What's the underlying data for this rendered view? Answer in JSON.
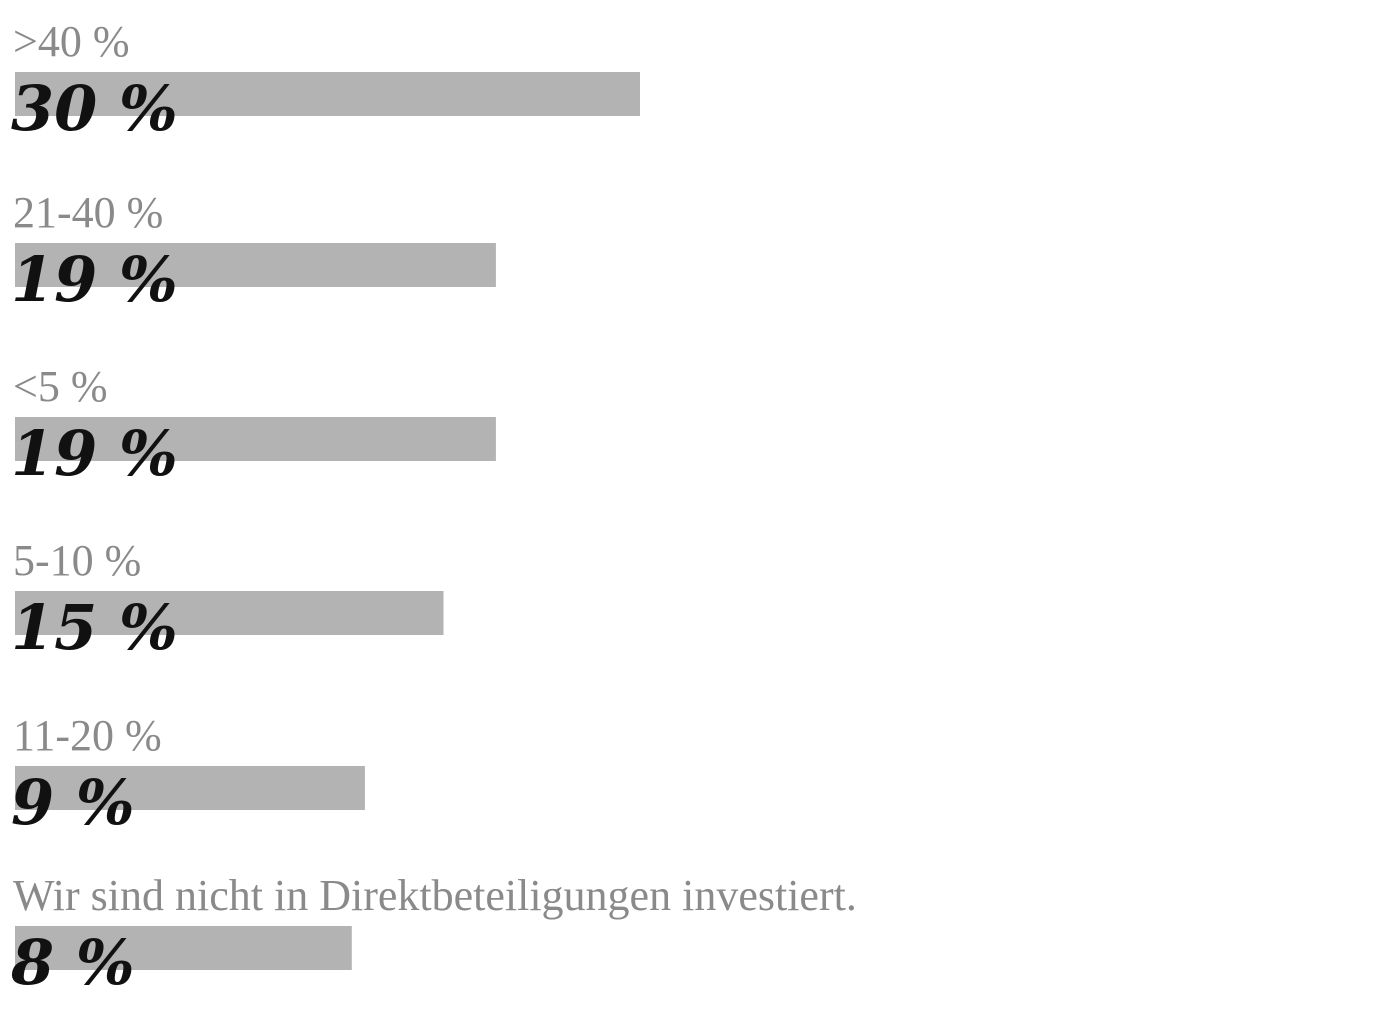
{
  "chart_data": {
    "type": "bar",
    "categories": [
      ">40 %",
      "21-40 %",
      "<5 %",
      "5-10 %",
      "11-20 %",
      "Wir sind nicht in Direktbeteiligungen investiert."
    ],
    "values": [
      30,
      19,
      19,
      15,
      9,
      8
    ],
    "value_labels": [
      "30 %",
      "19 %",
      "19 %",
      "15 %",
      "9 %",
      "8 %"
    ],
    "color": "#b3b3b4"
  }
}
